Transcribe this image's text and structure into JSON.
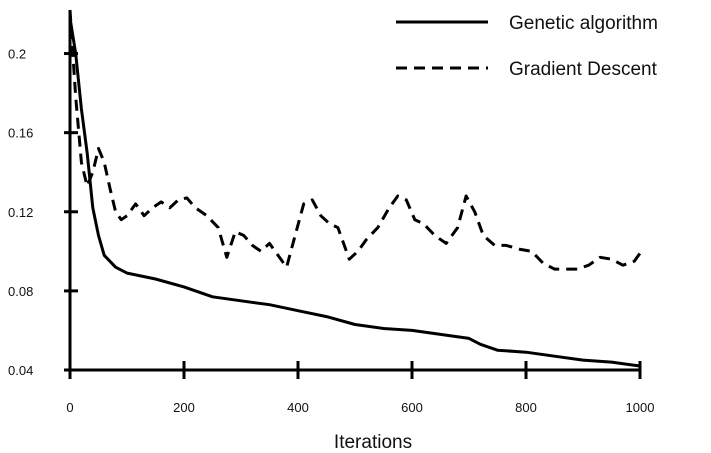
{
  "chart_data": {
    "type": "line",
    "title": "",
    "xlabel": "Iterations",
    "ylabel": "",
    "xlim": [
      0,
      1000
    ],
    "ylim": [
      0.04,
      0.22
    ],
    "x_ticks": [
      {
        "value": 0,
        "label": "0"
      },
      {
        "value": 200,
        "label": "200"
      },
      {
        "value": 400,
        "label": "400"
      },
      {
        "value": 600,
        "label": "600"
      },
      {
        "value": 800,
        "label": "800"
      },
      {
        "value": 1000,
        "label": "1000"
      }
    ],
    "y_ticks": [
      {
        "value": 0.04,
        "label": "0.04"
      },
      {
        "value": 0.08,
        "label": "0.08"
      },
      {
        "value": 0.12,
        "label": "0.12"
      },
      {
        "value": 0.16,
        "label": "0.16"
      },
      {
        "value": 0.2,
        "label": "0.2"
      }
    ],
    "grid": false,
    "legend_position": "top-right",
    "series": [
      {
        "name": "Genetic algorithm",
        "style": "solid",
        "color": "#000000",
        "x": [
          0,
          10,
          20,
          30,
          40,
          50,
          60,
          80,
          100,
          150,
          200,
          250,
          300,
          350,
          400,
          450,
          500,
          550,
          600,
          650,
          700,
          720,
          750,
          800,
          850,
          900,
          950,
          1000
        ],
        "y": [
          0.218,
          0.2,
          0.172,
          0.15,
          0.122,
          0.108,
          0.098,
          0.092,
          0.089,
          0.086,
          0.082,
          0.077,
          0.075,
          0.073,
          0.07,
          0.067,
          0.063,
          0.061,
          0.06,
          0.058,
          0.056,
          0.053,
          0.05,
          0.049,
          0.047,
          0.045,
          0.044,
          0.042
        ]
      },
      {
        "name": "Gradient Descent",
        "style": "dashed",
        "color": "#000000",
        "x": [
          0,
          10,
          20,
          30,
          40,
          50,
          60,
          70,
          80,
          90,
          100,
          115,
          130,
          145,
          160,
          175,
          190,
          205,
          220,
          240,
          260,
          275,
          290,
          305,
          320,
          335,
          350,
          365,
          380,
          395,
          410,
          425,
          440,
          455,
          470,
          490,
          505,
          520,
          540,
          560,
          575,
          590,
          605,
          620,
          640,
          660,
          680,
          695,
          710,
          725,
          745,
          765,
          790,
          810,
          830,
          850,
          870,
          890,
          910,
          930,
          950,
          970,
          990,
          1000
        ],
        "y": [
          0.222,
          0.178,
          0.145,
          0.133,
          0.14,
          0.152,
          0.145,
          0.132,
          0.12,
          0.116,
          0.118,
          0.124,
          0.118,
          0.122,
          0.125,
          0.122,
          0.126,
          0.127,
          0.122,
          0.118,
          0.112,
          0.097,
          0.11,
          0.108,
          0.103,
          0.1,
          0.104,
          0.098,
          0.092,
          0.108,
          0.124,
          0.126,
          0.118,
          0.114,
          0.112,
          0.096,
          0.1,
          0.106,
          0.112,
          0.122,
          0.128,
          0.126,
          0.116,
          0.114,
          0.108,
          0.104,
          0.112,
          0.128,
          0.12,
          0.108,
          0.103,
          0.103,
          0.101,
          0.1,
          0.094,
          0.091,
          0.091,
          0.091,
          0.093,
          0.097,
          0.096,
          0.093,
          0.095,
          0.099
        ]
      }
    ]
  }
}
